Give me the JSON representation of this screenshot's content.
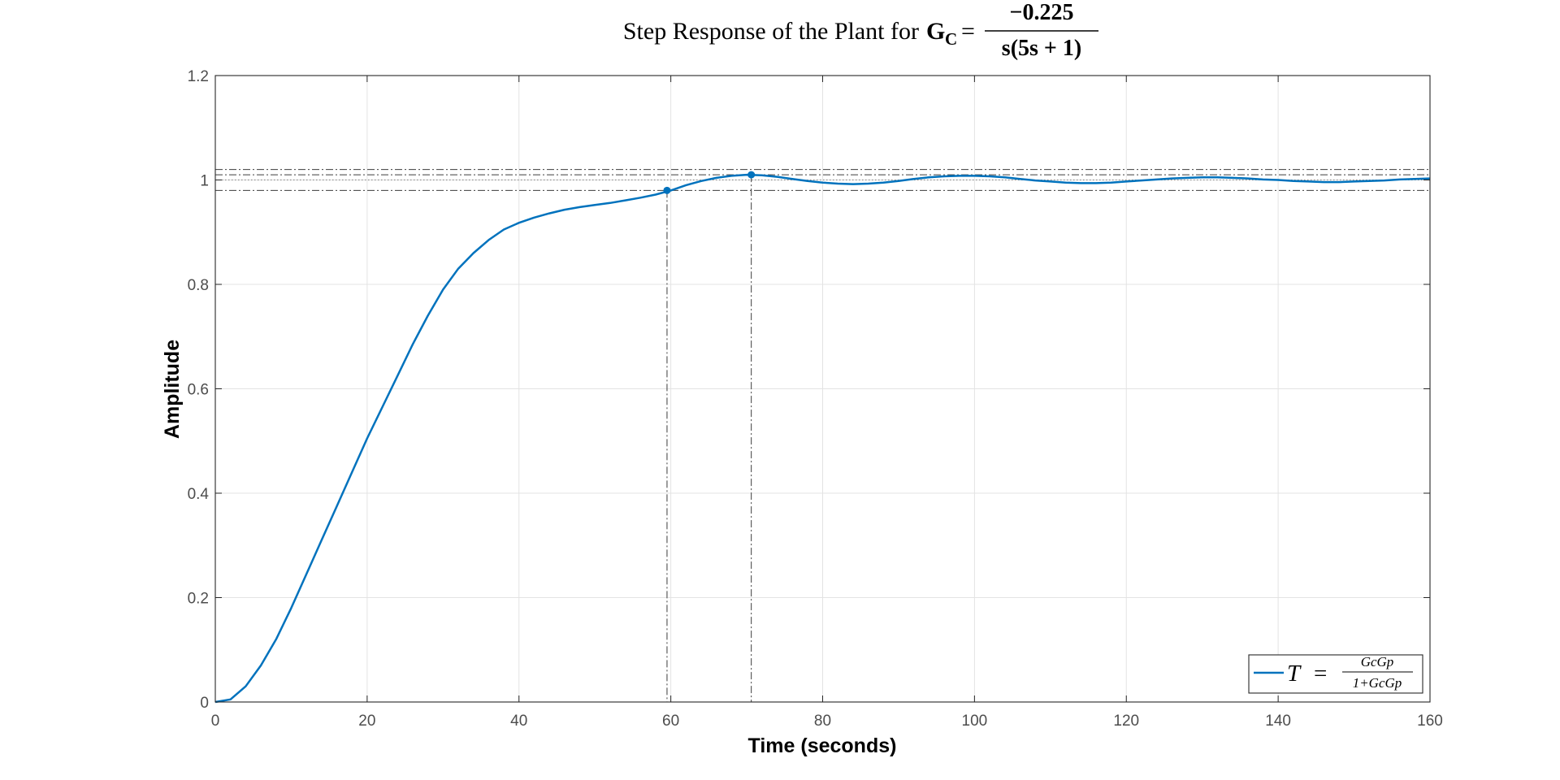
{
  "chart_data": {
    "type": "line",
    "title": {
      "text": "Step Response of the Plant for",
      "symbol": "G",
      "subscript": "C",
      "equals": "=",
      "numerator": "−0.225",
      "denominator": "s(5s + 1)"
    },
    "xlabel": "Time (seconds)",
    "ylabel": "Amplitude",
    "xlim": [
      0,
      160
    ],
    "ylim": [
      0,
      1.2
    ],
    "x_ticks": [
      "0",
      "20",
      "40",
      "60",
      "80",
      "100",
      "120",
      "140",
      "160"
    ],
    "y_ticks": [
      "0",
      "0.2",
      "0.4",
      "0.6",
      "0.8",
      "1",
      "1.2"
    ],
    "grid": true,
    "legend": {
      "placement": "bottom-right",
      "lhs": "T",
      "eq": "=",
      "numerator": "GcGp",
      "denominator": "1+GcGp"
    },
    "series": [
      {
        "color": "#0072bd",
        "x": [
          0,
          2,
          4,
          6,
          8,
          10,
          12,
          14,
          16,
          18,
          20,
          22,
          24,
          26,
          28,
          30,
          32,
          34,
          36,
          38,
          40,
          42,
          44,
          46,
          48,
          50,
          52,
          54,
          56,
          58,
          60,
          62,
          64,
          66,
          68,
          70,
          72,
          74,
          76,
          78,
          80,
          82,
          84,
          86,
          88,
          90,
          92,
          94,
          96,
          98,
          100,
          102,
          104,
          106,
          108,
          110,
          112,
          114,
          116,
          118,
          120,
          122,
          124,
          126,
          128,
          130,
          132,
          134,
          136,
          138,
          140,
          142,
          144,
          146,
          148,
          150,
          152,
          154,
          156,
          158,
          160
        ],
        "y": [
          0,
          0.005,
          0.03,
          0.07,
          0.12,
          0.18,
          0.245,
          0.31,
          0.375,
          0.44,
          0.505,
          0.565,
          0.625,
          0.685,
          0.74,
          0.79,
          0.83,
          0.86,
          0.885,
          0.905,
          0.918,
          0.928,
          0.936,
          0.943,
          0.948,
          0.952,
          0.956,
          0.961,
          0.966,
          0.972,
          0.98,
          0.99,
          0.998,
          1.004,
          1.008,
          1.01,
          1.009,
          1.006,
          1.002,
          0.998,
          0.995,
          0.993,
          0.992,
          0.993,
          0.995,
          0.998,
          1.002,
          1.005,
          1.007,
          1.008,
          1.008,
          1.007,
          1.005,
          1.002,
          0.999,
          0.997,
          0.995,
          0.994,
          0.994,
          0.995,
          0.997,
          0.999,
          1.001,
          1.003,
          1.004,
          1.005,
          1.005,
          1.004,
          1.003,
          1.001,
          1.0,
          0.998,
          0.997,
          0.996,
          0.996,
          0.997,
          0.998,
          0.999,
          1.001,
          1.002,
          1.003
        ]
      }
    ],
    "reference_lines": {
      "horizontal_dashdot": [
        1.02,
        1.01,
        0.98
      ],
      "horizontal_dotted": [
        1.0
      ],
      "vertical_dashdot": [
        59.5,
        70.6
      ]
    },
    "markers": [
      {
        "x": 59.5,
        "y": 0.98
      },
      {
        "x": 70.6,
        "y": 1.01
      }
    ]
  }
}
